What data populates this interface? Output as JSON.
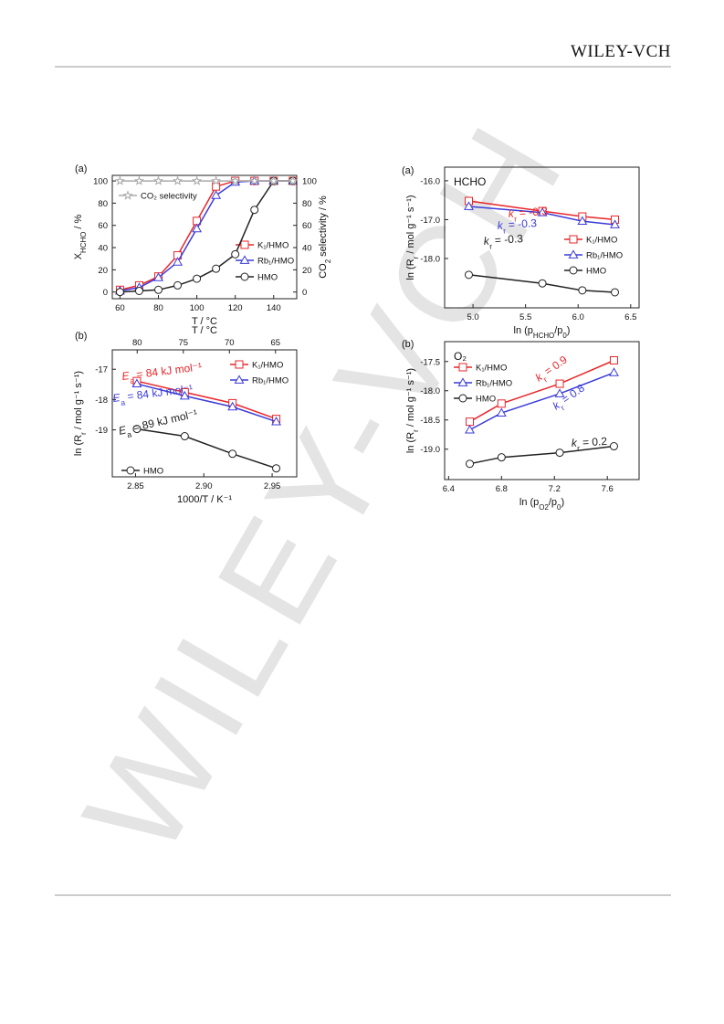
{
  "header": {
    "logo": "WILEY-VCH"
  },
  "watermark": "WILEY-VCH",
  "chart_data": [
    {
      "type": "line",
      "panel": "(a)",
      "x": [
        60,
        70,
        80,
        90,
        100,
        110,
        120,
        130,
        140,
        150
      ],
      "xlim": [
        56,
        152
      ],
      "xticks": [
        60,
        80,
        100,
        120,
        140
      ],
      "xlabel": [
        "T / °C"
      ],
      "ylim": [
        -6,
        105
      ],
      "yticks": [
        0,
        20,
        40,
        60,
        80,
        100
      ],
      "ylabel": [
        "X",
        "HCHO",
        " / %"
      ],
      "y2lim": [
        -6,
        105
      ],
      "y2ticks": [
        0,
        20,
        40,
        60,
        80,
        100
      ],
      "y2label": [
        "CO",
        "2",
        " selectivity / %"
      ],
      "series": [
        {
          "name": "K₁/HMO",
          "color": "#e8262a",
          "marker": "square",
          "values": [
            2,
            6,
            14,
            33,
            64,
            95,
            100,
            100,
            100,
            100
          ]
        },
        {
          "name": "Rb₁/HMO",
          "color": "#3b3bd9",
          "marker": "triangle",
          "values": [
            1,
            4,
            13,
            27,
            57,
            87,
            99,
            100,
            100,
            100
          ]
        },
        {
          "name": "HMO",
          "color": "#222222",
          "marker": "circle",
          "values": [
            0,
            1,
            2,
            6,
            12,
            21,
            34,
            74,
            100,
            100
          ]
        },
        {
          "name": "CO₂ selectivity",
          "color": "#aaaaaa",
          "marker": "star",
          "axis": "y2",
          "values": [
            100,
            100,
            100,
            100,
            100,
            100,
            100,
            100,
            100,
            100
          ]
        }
      ]
    },
    {
      "type": "line",
      "panel": "(b)",
      "x": [
        2.851,
        2.886,
        2.921,
        2.953
      ],
      "xlim": [
        2.833,
        2.968
      ],
      "xticks": [
        2.85,
        {
          "value": 2.9,
          "label": "2.90"
        },
        2.95
      ],
      "xlabel": [
        "1000/T / K⁻¹"
      ],
      "x2lim": [
        82.7,
        62.7
      ],
      "x2ticks": [
        80,
        75,
        70,
        65
      ],
      "x2label": [
        "T / °C"
      ],
      "ylim": [
        -20.55,
        -16.36
      ],
      "yticks": [
        -17,
        -18,
        -19
      ],
      "ylabel": [
        "ln (R",
        "r",
        " / mol g⁻¹ s⁻¹)"
      ],
      "series": [
        {
          "name": "K₁/HMO",
          "color": "#e8262a",
          "marker": "square",
          "values": [
            -17.39,
            -17.76,
            -18.12,
            -18.64
          ]
        },
        {
          "name": "Rb₁/HMO",
          "color": "#3b3bd9",
          "marker": "triangle",
          "values": [
            -17.48,
            -17.88,
            -18.24,
            -18.73
          ]
        },
        {
          "name": "HMO",
          "color": "#222222",
          "marker": "circle",
          "values": [
            -18.97,
            -19.21,
            -19.79,
            -20.27
          ]
        }
      ],
      "annotations": [
        {
          "text": [
            "E",
            "a",
            " = 84 kJ mol⁻¹"
          ],
          "color": "#e8262a"
        },
        {
          "text": [
            "E",
            "a",
            " = 84 kJ mol⁻¹"
          ],
          "color": "#3b3bd9"
        },
        {
          "text": [
            "E",
            "a",
            " = 89 kJ mol⁻¹"
          ],
          "color": "#222222"
        }
      ]
    },
    {
      "type": "line",
      "panel": "(a)",
      "inset_label": "HCHO",
      "x": [
        4.96,
        5.66,
        6.04,
        6.35
      ],
      "xlim": [
        4.73,
        6.58
      ],
      "xticks": [
        {
          "value": 5,
          "label": "5.0"
        },
        5.5,
        {
          "value": 6,
          "label": "6.0"
        },
        6.5
      ],
      "xlabel": [
        "ln (p",
        "HCHO",
        "/p",
        "0",
        ")"
      ],
      "ylim": [
        -19.27,
        -15.65
      ],
      "yticks": [
        {
          "value": -16,
          "label": "-16.0"
        },
        {
          "value": -17,
          "label": "-17.0"
        },
        {
          "value": -18,
          "label": "-18.0"
        }
      ],
      "ylabel": [
        "ln (R",
        "r",
        " / mol g⁻¹ s⁻¹)"
      ],
      "series": [
        {
          "name": "K₁/HMO",
          "color": "#e8262a",
          "marker": "square",
          "values": [
            -16.52,
            -16.78,
            -16.92,
            -17.0
          ]
        },
        {
          "name": "Rb₁/HMO",
          "color": "#3b3bd9",
          "marker": "triangle",
          "values": [
            -16.66,
            -16.82,
            -17.04,
            -17.13
          ]
        },
        {
          "name": "HMO",
          "color": "#222222",
          "marker": "circle",
          "values": [
            -18.42,
            -18.64,
            -18.82,
            -18.87
          ]
        }
      ],
      "annotations": [
        {
          "text": [
            "k",
            "r",
            " = -0.3"
          ],
          "color": "#e8262a"
        },
        {
          "text": [
            "k",
            "r",
            " = -0.3"
          ],
          "color": "#3b3bd9"
        },
        {
          "text": [
            "k",
            "r",
            " = -0.3"
          ],
          "color": "#222222"
        }
      ]
    },
    {
      "type": "line",
      "panel": "(b)",
      "inset_label": "O₂",
      "x": [
        6.56,
        6.8,
        7.24,
        7.65
      ],
      "xlim": [
        6.37,
        7.84
      ],
      "xticks": [
        6.4,
        6.8,
        7.2,
        7.6
      ],
      "xlabel": [
        "ln (p",
        "O2",
        "/p",
        "0",
        ")"
      ],
      "ylim": [
        -19.52,
        -17.16
      ],
      "yticks": [
        -17.5,
        {
          "value": -18,
          "label": "-18.0"
        },
        -18.5,
        {
          "value": -19,
          "label": "-19.0"
        }
      ],
      "ylabel": [
        "ln (R",
        "r",
        " / mol g⁻¹ s⁻¹)"
      ],
      "series": [
        {
          "name": "K₁/HMO",
          "color": "#e8262a",
          "marker": "square",
          "values": [
            -18.53,
            -18.22,
            -17.88,
            -17.48
          ]
        },
        {
          "name": "Rb₁/HMO",
          "color": "#3b3bd9",
          "marker": "triangle",
          "values": [
            -18.67,
            -18.38,
            -18.05,
            -17.69
          ]
        },
        {
          "name": "HMO",
          "color": "#222222",
          "marker": "circle",
          "values": [
            -19.25,
            -19.14,
            -19.06,
            -18.95
          ]
        }
      ],
      "annotations": [
        {
          "text": [
            "k",
            "r",
            " = 0.9"
          ],
          "color": "#e8262a"
        },
        {
          "text": [
            "k",
            "r",
            " = 0.8"
          ],
          "color": "#3b3bd9"
        },
        {
          "text": [
            "k",
            "r",
            " = 0.2"
          ],
          "color": "#222222"
        }
      ]
    }
  ]
}
